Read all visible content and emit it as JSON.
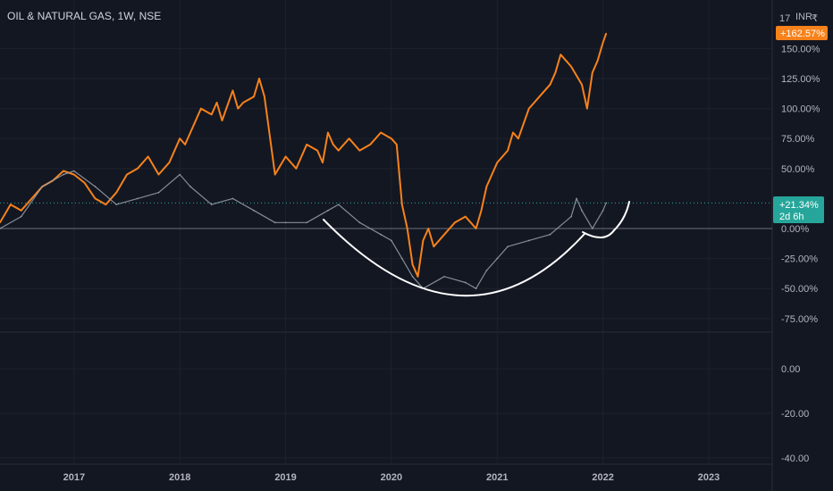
{
  "chart_data": {
    "type": "line",
    "title": "OIL & NATURAL GAS, 1W, NSE",
    "currency": "INR",
    "currency_symbol": "₹",
    "x_labels": [
      "2017",
      "2018",
      "2019",
      "2020",
      "2021",
      "2022",
      "2023"
    ],
    "main_pane": {
      "y_tick_labels": [
        "150.00%",
        "125.00%",
        "100.00%",
        "75.00%",
        "50.00%",
        "0.00%",
        "-25.00%",
        "-50.00%",
        "-75.00%"
      ],
      "ylim": [
        -75,
        175
      ],
      "series": [
        {
          "color": "#f7821b",
          "x": [
            2016.3,
            2016.4,
            2016.5,
            2016.6,
            2016.7,
            2016.8,
            2016.9,
            2017.0,
            2017.1,
            2017.2,
            2017.3,
            2017.4,
            2017.5,
            2017.6,
            2017.7,
            2017.8,
            2017.9,
            2018.0,
            2018.05,
            2018.1,
            2018.2,
            2018.3,
            2018.35,
            2018.4,
            2018.5,
            2018.55,
            2018.6,
            2018.7,
            2018.75,
            2018.8,
            2018.9,
            2019.0,
            2019.1,
            2019.2,
            2019.3,
            2019.35,
            2019.4,
            2019.45,
            2019.5,
            2019.6,
            2019.7,
            2019.8,
            2019.9,
            2020.0,
            2020.05,
            2020.1,
            2020.15,
            2020.2,
            2020.25,
            2020.3,
            2020.35,
            2020.4,
            2020.5,
            2020.6,
            2020.7,
            2020.8,
            2020.85,
            2020.9,
            2021.0,
            2021.1,
            2021.15,
            2021.2,
            2021.3,
            2021.4,
            2021.5,
            2021.55,
            2021.6,
            2021.65,
            2021.7,
            2021.8,
            2021.85,
            2021.9,
            2021.95,
            2022.0,
            2022.03
          ],
          "y": [
            5,
            20,
            15,
            25,
            35,
            40,
            48,
            45,
            38,
            25,
            20,
            30,
            45,
            50,
            60,
            45,
            55,
            75,
            70,
            80,
            100,
            95,
            105,
            90,
            115,
            100,
            105,
            110,
            125,
            110,
            45,
            60,
            50,
            70,
            65,
            55,
            80,
            70,
            65,
            75,
            65,
            70,
            80,
            75,
            70,
            20,
            0,
            -30,
            -40,
            -10,
            0,
            -15,
            -5,
            5,
            10,
            0,
            15,
            35,
            55,
            65,
            80,
            75,
            100,
            110,
            120,
            130,
            145,
            140,
            135,
            120,
            100,
            130,
            140,
            155,
            162.57
          ]
        },
        {
          "color": "#9aa0ab",
          "x": [
            2016.3,
            2016.5,
            2016.7,
            2016.9,
            2017.0,
            2017.2,
            2017.4,
            2017.6,
            2017.8,
            2018.0,
            2018.1,
            2018.3,
            2018.5,
            2018.7,
            2018.9,
            2019.0,
            2019.2,
            2019.4,
            2019.5,
            2019.7,
            2019.9,
            2020.0,
            2020.1,
            2020.2,
            2020.3,
            2020.5,
            2020.7,
            2020.8,
            2020.9,
            2021.0,
            2021.1,
            2021.3,
            2021.5,
            2021.7,
            2021.75,
            2021.8,
            2021.9,
            2022.0,
            2022.03
          ],
          "y": [
            0,
            10,
            35,
            45,
            48,
            35,
            20,
            25,
            30,
            45,
            35,
            20,
            25,
            15,
            5,
            5,
            5,
            15,
            20,
            5,
            -5,
            -10,
            -25,
            -40,
            -50,
            -40,
            -45,
            -50,
            -35,
            -25,
            -15,
            -10,
            -5,
            10,
            25,
            15,
            0,
            15,
            21.34
          ]
        }
      ],
      "annotation": "cup-and-handle-curve",
      "badges": [
        {
          "label": "+162.57%",
          "color": "#f7821b",
          "value": 162.57
        },
        {
          "label": "+21.34%",
          "color": "#26a69a",
          "value": 21.34
        },
        {
          "label": "2d 6h",
          "color": "#26a69a"
        }
      ],
      "corner_label": "17"
    },
    "lower_pane": {
      "y_tick_labels": [
        "0.00",
        "-20.00",
        "-40.00"
      ],
      "ylim": [
        -40,
        10
      ]
    },
    "xlim": [
      2016.3,
      2023.6
    ]
  }
}
